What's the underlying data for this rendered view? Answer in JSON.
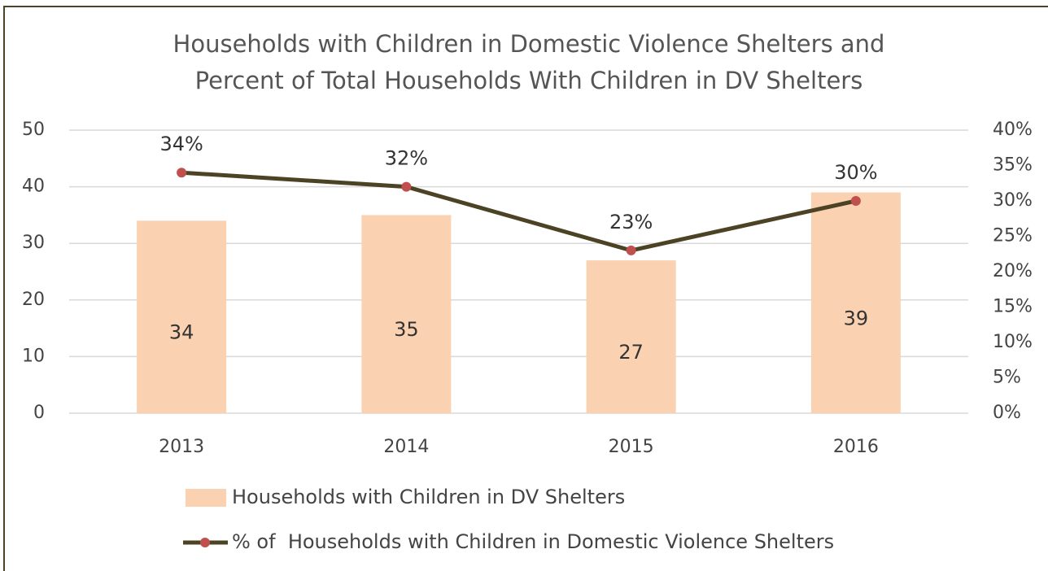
{
  "chart_data": {
    "type": "bar-line",
    "title": [
      "Households with Children in Domestic Violence Shelters and",
      "Percent of Total Households With Children in DV Shelters"
    ],
    "categories": [
      "2013",
      "2014",
      "2015",
      "2016"
    ],
    "series": [
      {
        "name": "Households with Children in DV Shelters",
        "type": "bar",
        "color": "#fad1b1",
        "values": [
          34,
          35,
          27,
          39
        ]
      },
      {
        "name": "% of  Households with Children in Domestic Violence Shelters",
        "type": "line",
        "axis": "y2",
        "color": "#4b4324",
        "marker_color": "#c0504d",
        "values": [
          34,
          32,
          23,
          30
        ],
        "value_labels": [
          "34%",
          "32%",
          "23%",
          "30%"
        ]
      }
    ],
    "ylim": [
      0,
      50
    ],
    "yticks": [
      0,
      10,
      20,
      30,
      40,
      50
    ],
    "y2lim": [
      0,
      40
    ],
    "y2ticks": [
      {
        "value": 0,
        "label": "0%"
      },
      {
        "value": 5,
        "label": "5%"
      },
      {
        "value": 10,
        "label": "10%"
      },
      {
        "value": 15,
        "label": "15%"
      },
      {
        "value": 20,
        "label": "20%"
      },
      {
        "value": 25,
        "label": "25%"
      },
      {
        "value": 30,
        "label": "30%"
      },
      {
        "value": 35,
        "label": "35%"
      },
      {
        "value": 40,
        "label": "40%"
      }
    ],
    "grid": true,
    "legend": "bottom"
  }
}
